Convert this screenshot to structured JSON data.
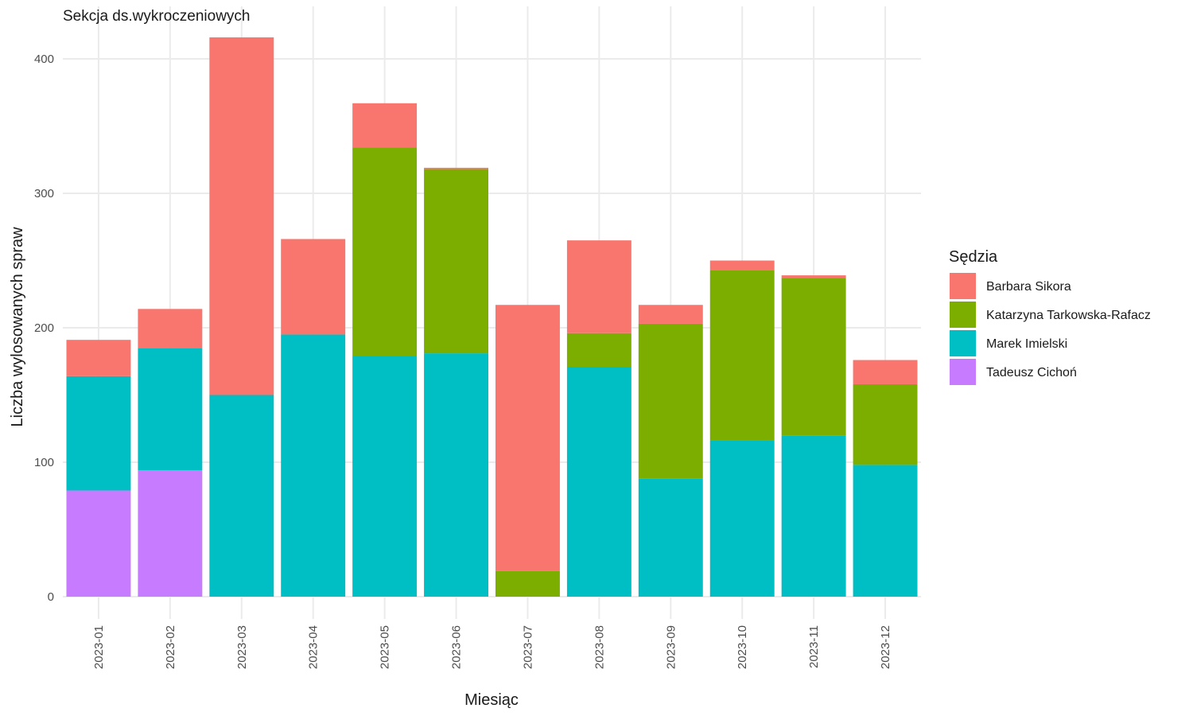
{
  "chart_data": {
    "type": "bar",
    "stacked": true,
    "title": "Sekcja ds.wykroczeniowych",
    "xlabel": "Miesiąc",
    "ylabel": "Liczba wylosowanych spraw",
    "ylim": [
      0,
      420
    ],
    "yticks": [
      0,
      100,
      200,
      300,
      400
    ],
    "grid": true,
    "legend_title": "Sędzia",
    "legend_position": "right",
    "categories": [
      "2023-01",
      "2023-02",
      "2023-03",
      "2023-04",
      "2023-05",
      "2023-06",
      "2023-07",
      "2023-08",
      "2023-09",
      "2023-10",
      "2023-11",
      "2023-12"
    ],
    "series": [
      {
        "name": "Tadeusz Cichoń",
        "color": "#C77CFF",
        "values": [
          79,
          94,
          0,
          0,
          0,
          0,
          0,
          0,
          0,
          0,
          0,
          0
        ]
      },
      {
        "name": "Marek Imielski",
        "color": "#00BFC4",
        "values": [
          85,
          91,
          150,
          195,
          179,
          181,
          0,
          171,
          88,
          116,
          120,
          98
        ]
      },
      {
        "name": "Katarzyna Tarkowska-Rafacz",
        "color": "#7CAE00",
        "values": [
          0,
          0,
          0,
          0,
          155,
          137,
          19,
          25,
          115,
          127,
          117,
          60
        ]
      },
      {
        "name": "Barbara Sikora",
        "color": "#F8766D",
        "values": [
          27,
          29,
          266,
          71,
          33,
          1,
          198,
          69,
          14,
          7,
          2,
          18
        ]
      }
    ],
    "legend_order": [
      "Barbara Sikora",
      "Katarzyna Tarkowska-Rafacz",
      "Marek Imielski",
      "Tadeusz Cichoń"
    ]
  }
}
